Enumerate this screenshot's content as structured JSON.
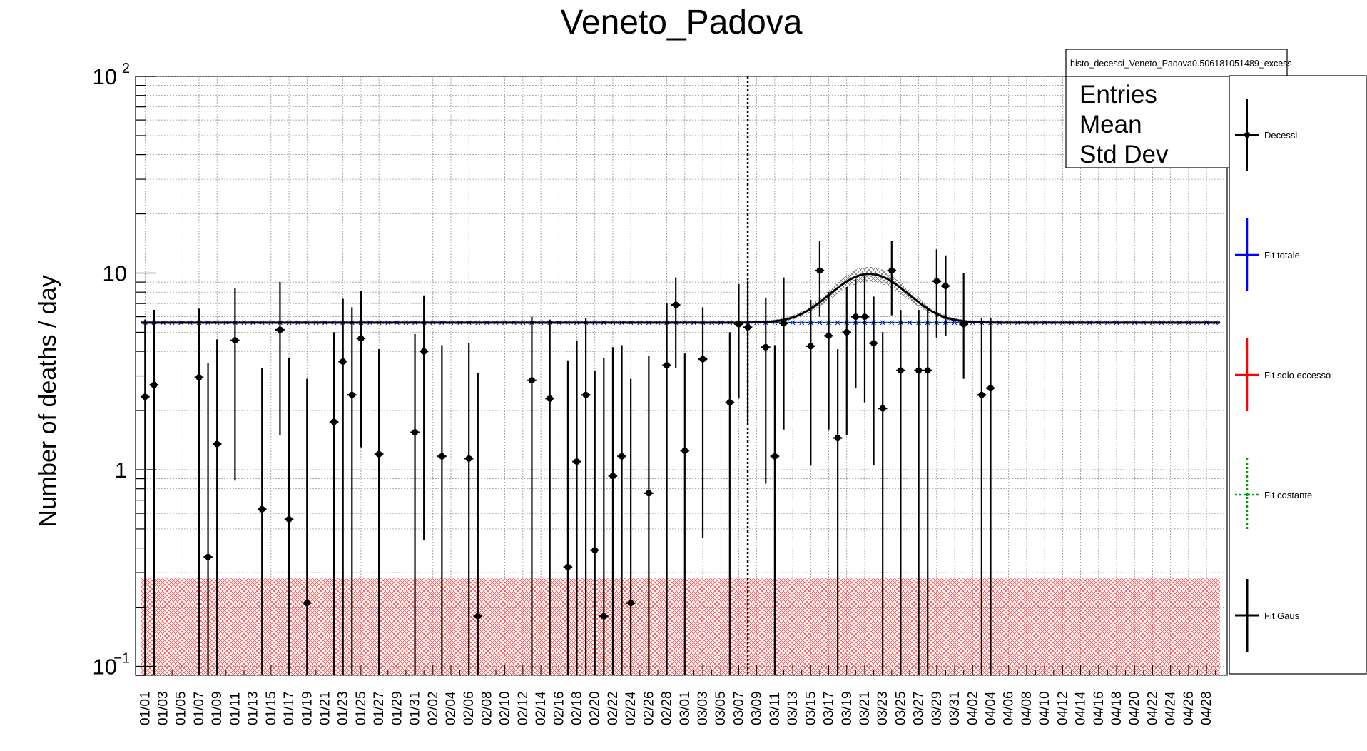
{
  "chart_data": {
    "type": "scatter",
    "title": "Veneto_Padova",
    "ylabel": "Number of deaths / day",
    "xlabel": "",
    "y_scale": "log",
    "ylim": [
      0.09,
      100
    ],
    "grid": true,
    "x_dates": {
      "start_month": 1,
      "start_day": 1,
      "count": 120,
      "labels": [
        "01/01",
        "01/03",
        "01/05",
        "01/07",
        "01/09",
        "01/11",
        "01/13",
        "01/15",
        "01/17",
        "01/19",
        "01/21",
        "01/23",
        "01/25",
        "01/27",
        "01/29",
        "01/31",
        "02/02",
        "02/04",
        "02/06",
        "02/08",
        "02/10",
        "02/12",
        "02/14",
        "02/16",
        "02/18",
        "02/20",
        "02/22",
        "02/24",
        "02/26",
        "02/28",
        "03/01",
        "03/03",
        "03/05",
        "03/07",
        "03/09",
        "03/11",
        "03/13",
        "03/15",
        "03/17",
        "03/19",
        "03/21",
        "03/23",
        "03/25",
        "03/27",
        "03/29",
        "03/31",
        "04/02",
        "04/04",
        "04/06",
        "04/08",
        "04/10",
        "04/12",
        "04/14",
        "04/16",
        "04/18",
        "04/20",
        "04/22",
        "04/24",
        "04/26",
        "04/28"
      ]
    },
    "y_ticks": [
      {
        "value": 0.1,
        "base": "10",
        "exp": "−1"
      },
      {
        "value": 1,
        "label": "1"
      },
      {
        "value": 10,
        "label": "10"
      },
      {
        "value": 100,
        "base": "10",
        "exp": "2"
      }
    ],
    "vertical_marker_date": "03/09",
    "series": [
      {
        "name": "Decessi",
        "color": "#000000",
        "points": [
          {
            "date": "01/01",
            "y": 2.35,
            "lo": 0.09,
            "hi": 5.8
          },
          {
            "date": "01/02",
            "y": 2.7,
            "lo": 0.09,
            "hi": 6.5
          },
          {
            "date": "01/07",
            "y": 2.95,
            "lo": 0.09,
            "hi": 6.6
          },
          {
            "date": "01/08",
            "y": 0.36,
            "lo": 0.09,
            "hi": 3.5
          },
          {
            "date": "01/09",
            "y": 1.35,
            "lo": 0.09,
            "hi": 4.6
          },
          {
            "date": "01/11",
            "y": 4.55,
            "lo": 0.88,
            "hi": 8.4
          },
          {
            "date": "01/14",
            "y": 0.63,
            "lo": 0.09,
            "hi": 3.3
          },
          {
            "date": "01/16",
            "y": 5.15,
            "lo": 1.5,
            "hi": 9.0
          },
          {
            "date": "01/17",
            "y": 0.56,
            "lo": 0.09,
            "hi": 3.7
          },
          {
            "date": "01/19",
            "y": 0.21,
            "lo": 0.09,
            "hi": 2.9
          },
          {
            "date": "01/22",
            "y": 1.75,
            "lo": 0.09,
            "hi": 5.0
          },
          {
            "date": "01/23",
            "y": 3.55,
            "lo": 0.09,
            "hi": 7.4
          },
          {
            "date": "01/24",
            "y": 2.4,
            "lo": 0.09,
            "hi": 6.7
          },
          {
            "date": "01/25",
            "y": 4.65,
            "lo": 1.3,
            "hi": 8.1
          },
          {
            "date": "01/27",
            "y": 1.2,
            "lo": 0.09,
            "hi": 4.1
          },
          {
            "date": "01/31",
            "y": 1.55,
            "lo": 0.09,
            "hi": 4.9
          },
          {
            "date": "02/01",
            "y": 4.0,
            "lo": 0.44,
            "hi": 7.7
          },
          {
            "date": "02/03",
            "y": 1.17,
            "lo": 0.09,
            "hi": 4.3
          },
          {
            "date": "02/06",
            "y": 1.14,
            "lo": 0.09,
            "hi": 4.4
          },
          {
            "date": "02/07",
            "y": 0.18,
            "lo": 0.09,
            "hi": 3.1
          },
          {
            "date": "02/13",
            "y": 2.85,
            "lo": 0.09,
            "hi": 6.0
          },
          {
            "date": "02/15",
            "y": 2.3,
            "lo": 0.09,
            "hi": 5.8
          },
          {
            "date": "02/17",
            "y": 0.32,
            "lo": 0.09,
            "hi": 3.6
          },
          {
            "date": "02/18",
            "y": 1.1,
            "lo": 0.09,
            "hi": 4.5
          },
          {
            "date": "02/19",
            "y": 2.4,
            "lo": 0.09,
            "hi": 5.9
          },
          {
            "date": "02/20",
            "y": 0.39,
            "lo": 0.09,
            "hi": 3.2
          },
          {
            "date": "02/21",
            "y": 0.18,
            "lo": 0.09,
            "hi": 3.7
          },
          {
            "date": "02/22",
            "y": 0.93,
            "lo": 0.09,
            "hi": 4.2
          },
          {
            "date": "02/23",
            "y": 1.17,
            "lo": 0.09,
            "hi": 4.3
          },
          {
            "date": "02/24",
            "y": 0.21,
            "lo": 0.09,
            "hi": 2.9
          },
          {
            "date": "02/26",
            "y": 0.76,
            "lo": 0.09,
            "hi": 3.8
          },
          {
            "date": "02/28",
            "y": 3.4,
            "lo": 0.09,
            "hi": 7.0
          },
          {
            "date": "02/29",
            "y": 6.9,
            "lo": 3.3,
            "hi": 9.5
          },
          {
            "date": "03/01",
            "y": 1.25,
            "lo": 0.09,
            "hi": 3.9
          },
          {
            "date": "03/03",
            "y": 3.65,
            "lo": 0.45,
            "hi": 6.7
          },
          {
            "date": "03/06",
            "y": 2.2,
            "lo": 0.09,
            "hi": 5.0
          },
          {
            "date": "03/07",
            "y": 5.5,
            "lo": 2.3,
            "hi": 8.8
          },
          {
            "date": "03/08",
            "y": 5.3,
            "lo": 1.7,
            "hi": 9.2
          },
          {
            "date": "03/10",
            "y": 4.2,
            "lo": 0.85,
            "hi": 7.5
          },
          {
            "date": "03/11",
            "y": 1.17,
            "lo": 0.09,
            "hi": 4.3
          },
          {
            "date": "03/12",
            "y": 5.55,
            "lo": 1.6,
            "hi": 9.5
          },
          {
            "date": "03/15",
            "y": 4.25,
            "lo": 1.05,
            "hi": 7.3
          },
          {
            "date": "03/16",
            "y": 10.3,
            "lo": 6.0,
            "hi": 14.5
          },
          {
            "date": "03/17",
            "y": 4.8,
            "lo": 1.6,
            "hi": 8.0
          },
          {
            "date": "03/18",
            "y": 1.45,
            "lo": 0.09,
            "hi": 4.1
          },
          {
            "date": "03/19",
            "y": 5.0,
            "lo": 1.5,
            "hi": 8.5
          },
          {
            "date": "03/20",
            "y": 6.0,
            "lo": 2.6,
            "hi": 9.3
          },
          {
            "date": "03/21",
            "y": 6.0,
            "lo": 2.2,
            "hi": 9.7
          },
          {
            "date": "03/22",
            "y": 4.4,
            "lo": 1.05,
            "hi": 7.6
          },
          {
            "date": "03/23",
            "y": 2.05,
            "lo": 0.09,
            "hi": 5.0
          },
          {
            "date": "03/24",
            "y": 10.3,
            "lo": 6.1,
            "hi": 14.5
          },
          {
            "date": "03/25",
            "y": 3.2,
            "lo": 0.09,
            "hi": 6.5
          },
          {
            "date": "03/27",
            "y": 3.2,
            "lo": 0.09,
            "hi": 6.5
          },
          {
            "date": "03/28",
            "y": 3.2,
            "lo": 0.09,
            "hi": 6.6
          },
          {
            "date": "03/29",
            "y": 9.1,
            "lo": 4.7,
            "hi": 13.2
          },
          {
            "date": "03/30",
            "y": 8.6,
            "lo": 4.8,
            "hi": 12.3
          },
          {
            "date": "04/01",
            "y": 5.5,
            "lo": 2.9,
            "hi": 10.0
          },
          {
            "date": "04/03",
            "y": 2.4,
            "lo": 0.09,
            "hi": 5.9
          },
          {
            "date": "04/04",
            "y": 2.6,
            "lo": 0.09,
            "hi": 5.9
          }
        ]
      },
      {
        "name": "Fit totale",
        "color": "#0000ff",
        "constant": 5.6
      },
      {
        "name": "Fit solo eccesso",
        "color": "#ff0000",
        "band": [
          0.09,
          0.28
        ]
      },
      {
        "name": "Fit costante",
        "color": "#00a000",
        "constant": 5.6
      },
      {
        "name": "Fit Gaus",
        "color": "#000000",
        "baseline": 5.6,
        "amplitude": 4.3,
        "mean_date": "03/22",
        "sigma_days": 3.8
      }
    ]
  },
  "stats_box": {
    "title": "histo_decessi_Veneto_Padova0.506181051489_excess",
    "rows": [
      "Entries",
      "Mean",
      "Std Dev"
    ]
  },
  "legend": {
    "placement": "right",
    "entries": [
      {
        "label": "Decessi",
        "color": "#000000",
        "style": "marker"
      },
      {
        "label": "Fit totale",
        "color": "#0000ff",
        "style": "solid"
      },
      {
        "label": "Fit solo eccesso",
        "color": "#ff0000",
        "style": "solid"
      },
      {
        "label": "Fit costante",
        "color": "#00a000",
        "style": "dotted"
      },
      {
        "label": "Fit Gaus",
        "color": "#000000",
        "style": "solid"
      }
    ]
  }
}
